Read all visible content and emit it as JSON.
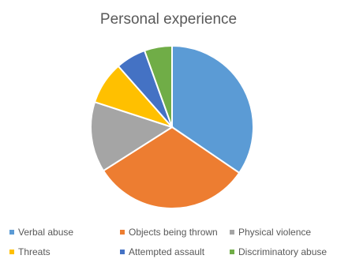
{
  "chart_data": {
    "type": "pie",
    "title": "Personal experience",
    "series": [
      {
        "name": "Personal experience",
        "slices": [
          {
            "label": "Verbal abuse",
            "value": 34.5,
            "color": "#5B9BD5"
          },
          {
            "label": "Objects being thrown",
            "value": 31.5,
            "color": "#ED7D31"
          },
          {
            "label": "Physical violence",
            "value": 14,
            "color": "#A5A5A5"
          },
          {
            "label": "Threats",
            "value": 8.5,
            "color": "#FFC000"
          },
          {
            "label": "Attempted assault",
            "value": 6,
            "color": "#4472C4"
          },
          {
            "label": "Discriminatory abuse",
            "value": 5.5,
            "color": "#70AD47"
          }
        ]
      }
    ],
    "legend_position": "bottom"
  }
}
